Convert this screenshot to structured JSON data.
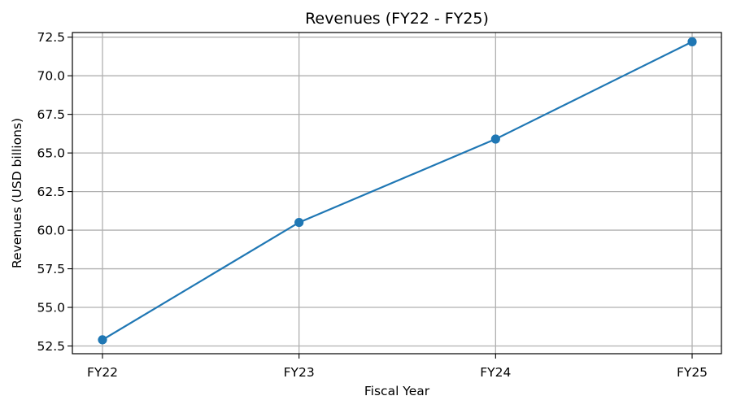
{
  "chart_data": {
    "type": "line",
    "title": "Revenues (FY22 - FY25)",
    "xlabel": "Fiscal Year",
    "ylabel": "Revenues (USD billions)",
    "categories": [
      "FY22",
      "FY23",
      "FY24",
      "FY25"
    ],
    "series": [
      {
        "values": [
          52.9,
          60.5,
          65.9,
          72.2
        ],
        "color": "#1f77b4",
        "marker": "circle"
      }
    ],
    "ylim": [
      52.0,
      72.8
    ],
    "yticks": [
      52.5,
      55.0,
      57.5,
      60.0,
      62.5,
      65.0,
      67.5,
      70.0,
      72.5
    ],
    "ytick_labels": [
      "52.5",
      "55.0",
      "57.5",
      "60.0",
      "62.5",
      "65.0",
      "67.5",
      "70.0",
      "72.5"
    ],
    "grid": true,
    "legend": false,
    "grid_color": "#b0b0b0"
  }
}
